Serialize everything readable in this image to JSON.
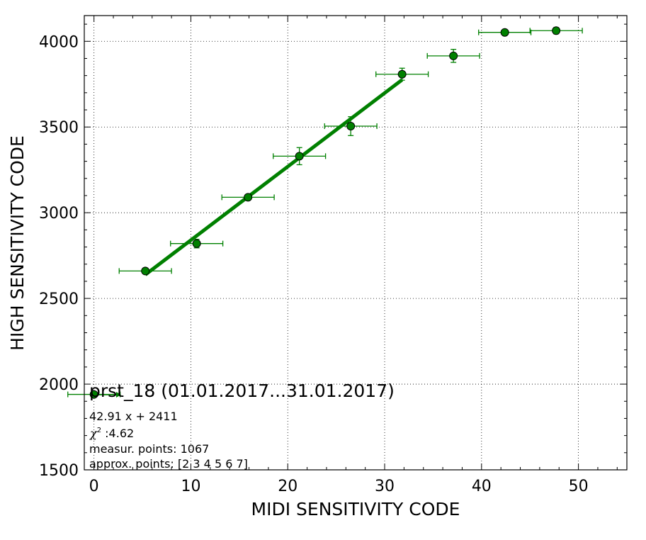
{
  "chart_data": {
    "type": "scatter",
    "xlabel": "MIDI SENSITIVITY CODE",
    "ylabel": "HIGH SENSITIVITY CODE",
    "xlim": [
      -1,
      55
    ],
    "ylim": [
      1500,
      4150
    ],
    "xticks": [
      0,
      10,
      20,
      30,
      40,
      50
    ],
    "yticks": [
      1500,
      2000,
      2500,
      3000,
      3500,
      4000
    ],
    "grid": true,
    "legend_position": "lower-left",
    "series": [
      {
        "name": "prst_18 (01.01.2017...31.01.2017)",
        "color": "#008000",
        "marker": "circle",
        "points": [
          {
            "x": 0.0,
            "y": 1940,
            "xerr": 2.7,
            "yerr": 0
          },
          {
            "x": 5.3,
            "y": 2660,
            "xerr": 2.7,
            "yerr": 12
          },
          {
            "x": 10.6,
            "y": 2820,
            "xerr": 2.7,
            "yerr": 25
          },
          {
            "x": 15.9,
            "y": 3090,
            "xerr": 2.7,
            "yerr": 12
          },
          {
            "x": 21.2,
            "y": 3330,
            "xerr": 2.7,
            "yerr": 50
          },
          {
            "x": 26.5,
            "y": 3505,
            "xerr": 2.7,
            "yerr": 55
          },
          {
            "x": 31.8,
            "y": 3808,
            "xerr": 2.7,
            "yerr": 35
          },
          {
            "x": 37.1,
            "y": 3915,
            "xerr": 2.7,
            "yerr": 38
          },
          {
            "x": 42.4,
            "y": 4052,
            "xerr": 2.7,
            "yerr": 12
          },
          {
            "x": 47.7,
            "y": 4062,
            "xerr": 2.7,
            "yerr": 18
          }
        ]
      }
    ],
    "fit": {
      "slope": 42.91,
      "intercept": 2411,
      "x_range": [
        5.3,
        31.8
      ],
      "color": "#008000"
    },
    "legend": {
      "title": "prst_18 (01.01.2017...31.01.2017)",
      "equation": "42.91 x + 2411",
      "chi2_label": "χ",
      "chi2_exp": "2",
      "chi2_value": " :4.62",
      "measur_points": "measur. points: 1067",
      "approx_points": "approx. points: [2 3 4 5 6 7]"
    }
  }
}
